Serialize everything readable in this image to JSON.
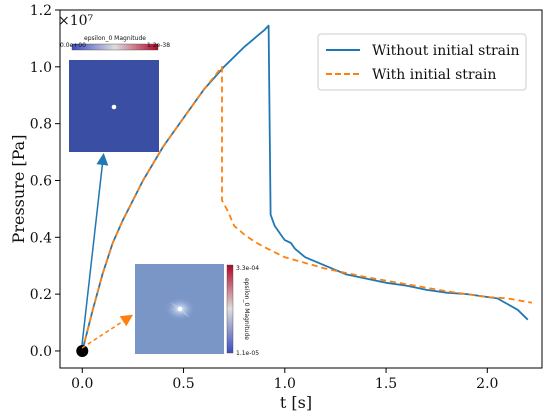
{
  "chart_data": {
    "type": "line",
    "xlabel": "t [s]",
    "ylabel": "Pressure [Pa]",
    "y_multiplier": "×10⁷",
    "xlim": [
      -0.11,
      2.27
    ],
    "ylim": [
      -0.06,
      1.2
    ],
    "x_ticks": [
      0.0,
      0.5,
      1.0,
      1.5,
      2.0
    ],
    "x_tick_labels": [
      "0.0",
      "0.5",
      "1.0",
      "1.5",
      "2.0"
    ],
    "y_ticks": [
      0.0,
      0.2,
      0.4,
      0.6,
      0.8,
      1.0,
      1.2
    ],
    "y_tick_labels": [
      "0.0",
      "0.2",
      "0.4",
      "0.6",
      "0.8",
      "1.0",
      "1.2"
    ],
    "grid": false,
    "legend_position": "top-right",
    "series": [
      {
        "name": "Without initial strain",
        "color": "#1f77b4",
        "style": "solid",
        "x": [
          0.0,
          0.05,
          0.1,
          0.15,
          0.2,
          0.3,
          0.4,
          0.5,
          0.6,
          0.7,
          0.8,
          0.9,
          0.92,
          0.93,
          0.95,
          0.98,
          1.0,
          1.03,
          1.05,
          1.1,
          1.2,
          1.3,
          1.4,
          1.5,
          1.6,
          1.7,
          1.8,
          1.9,
          2.0,
          2.05,
          2.1,
          2.15,
          2.2
        ],
        "y": [
          0.0,
          0.14,
          0.27,
          0.38,
          0.46,
          0.6,
          0.72,
          0.82,
          0.92,
          1.0,
          1.07,
          1.13,
          1.145,
          0.48,
          0.44,
          0.41,
          0.39,
          0.38,
          0.36,
          0.33,
          0.3,
          0.27,
          0.255,
          0.24,
          0.23,
          0.215,
          0.205,
          0.2,
          0.19,
          0.185,
          0.165,
          0.145,
          0.11
        ]
      },
      {
        "name": "With initial strain",
        "color": "#ff7f0e",
        "style": "dashed",
        "x": [
          0.0,
          0.05,
          0.1,
          0.15,
          0.2,
          0.3,
          0.4,
          0.5,
          0.6,
          0.69,
          0.69,
          0.72,
          0.75,
          0.8,
          0.85,
          0.9,
          1.0,
          1.2,
          1.4,
          1.6,
          1.8,
          2.0,
          2.1,
          2.22
        ],
        "y": [
          0.0,
          0.14,
          0.27,
          0.38,
          0.46,
          0.6,
          0.72,
          0.82,
          0.92,
          1.0,
          0.53,
          0.49,
          0.44,
          0.41,
          0.385,
          0.365,
          0.33,
          0.29,
          0.26,
          0.235,
          0.21,
          0.19,
          0.185,
          0.17
        ]
      }
    ],
    "annotations": [
      {
        "type": "marker",
        "x": 0.0,
        "y": 0.0,
        "color": "#000000"
      },
      {
        "type": "inset",
        "name": "inset-initial-strain-magnitude",
        "colorbar_title": "epsilon_0 Magnitude",
        "colorbar_min": "0.0e+00",
        "colorbar_max": "1.2e-38",
        "field_color": "#3a4fa3"
      },
      {
        "type": "inset",
        "name": "inset-strain-magnitude",
        "colorbar_title": "epsilon_0 Magnitude",
        "colorbar_min": "1.1e-05",
        "colorbar_max": "3.3e-04",
        "field_color": "#7a96c7"
      }
    ]
  }
}
